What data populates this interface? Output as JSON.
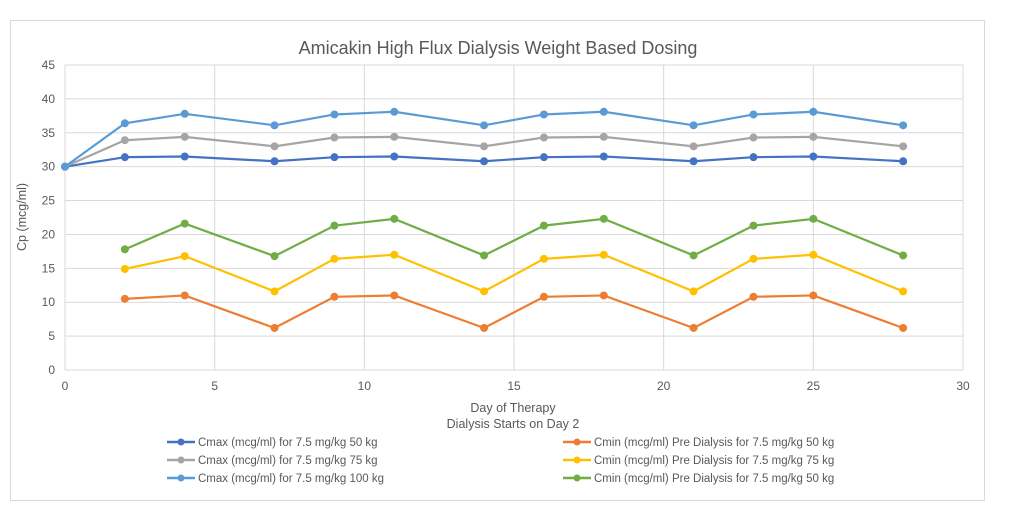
{
  "chart_data": {
    "type": "line",
    "title": "Amicakin High Flux Dialysis Weight Based Dosing",
    "xlabel": "Day of Therapy",
    "xlabel2": "Dialysis Starts on Day 2",
    "ylabel": "Cp (mcg/ml)",
    "xlim": [
      0,
      30
    ],
    "ylim": [
      0,
      45
    ],
    "xticks": [
      0,
      5,
      10,
      15,
      20,
      25,
      30
    ],
    "yticks": [
      0,
      5,
      10,
      15,
      20,
      25,
      30,
      35,
      40,
      45
    ],
    "grid": true,
    "legend_position": "bottom",
    "series": [
      {
        "name": "Cmax (mcg/ml) for 7.5 mg/kg 50 kg",
        "color": "#4472c4",
        "x": [
          0,
          2,
          4,
          7,
          9,
          11,
          14,
          16,
          18,
          21,
          23,
          25,
          28
        ],
        "y": [
          30,
          31.4,
          31.5,
          30.8,
          31.4,
          31.5,
          30.8,
          31.4,
          31.5,
          30.8,
          31.4,
          31.5,
          30.8
        ]
      },
      {
        "name": "Cmax (mcg/ml) for 7.5 mg/kg 75 kg",
        "color": "#a5a5a5",
        "x": [
          0,
          2,
          4,
          7,
          9,
          11,
          14,
          16,
          18,
          21,
          23,
          25,
          28
        ],
        "y": [
          30,
          33.9,
          34.4,
          33.0,
          34.3,
          34.4,
          33.0,
          34.3,
          34.4,
          33.0,
          34.3,
          34.4,
          33.0
        ]
      },
      {
        "name": "Cmax (mcg/ml) for 7.5 mg/kg 100 kg",
        "color": "#5b9bd5",
        "x": [
          0,
          2,
          4,
          7,
          9,
          11,
          14,
          16,
          18,
          21,
          23,
          25,
          28
        ],
        "y": [
          30,
          36.4,
          37.8,
          36.1,
          37.7,
          38.1,
          36.1,
          37.7,
          38.1,
          36.1,
          37.7,
          38.1,
          36.1
        ]
      },
      {
        "name": "Cmin (mcg/ml) Pre Dialysis for 7.5 mg/kg 50 kg",
        "color": "#ed7d31",
        "x": [
          2,
          4,
          7,
          9,
          11,
          14,
          16,
          18,
          21,
          23,
          25,
          28
        ],
        "y": [
          10.5,
          11.0,
          6.2,
          10.8,
          11.0,
          6.2,
          10.8,
          11.0,
          6.2,
          10.8,
          11.0,
          6.2
        ]
      },
      {
        "name": "Cmin (mcg/ml) Pre Dialysis for 7.5 mg/kg 75 kg",
        "color": "#ffc000",
        "x": [
          2,
          4,
          7,
          9,
          11,
          14,
          16,
          18,
          21,
          23,
          25,
          28
        ],
        "y": [
          14.9,
          16.8,
          11.6,
          16.4,
          17.0,
          11.6,
          16.4,
          17.0,
          11.6,
          16.4,
          17.0,
          11.6
        ]
      },
      {
        "name": "Cmin (mcg/ml) Pre Dialysis for 7.5 mg/kg 50 kg",
        "color": "#70ad47",
        "x": [
          2,
          4,
          7,
          9,
          11,
          14,
          16,
          18,
          21,
          23,
          25,
          28
        ],
        "y": [
          17.8,
          21.6,
          16.8,
          21.3,
          22.3,
          16.9,
          21.3,
          22.3,
          16.9,
          21.3,
          22.3,
          16.9
        ]
      }
    ]
  }
}
